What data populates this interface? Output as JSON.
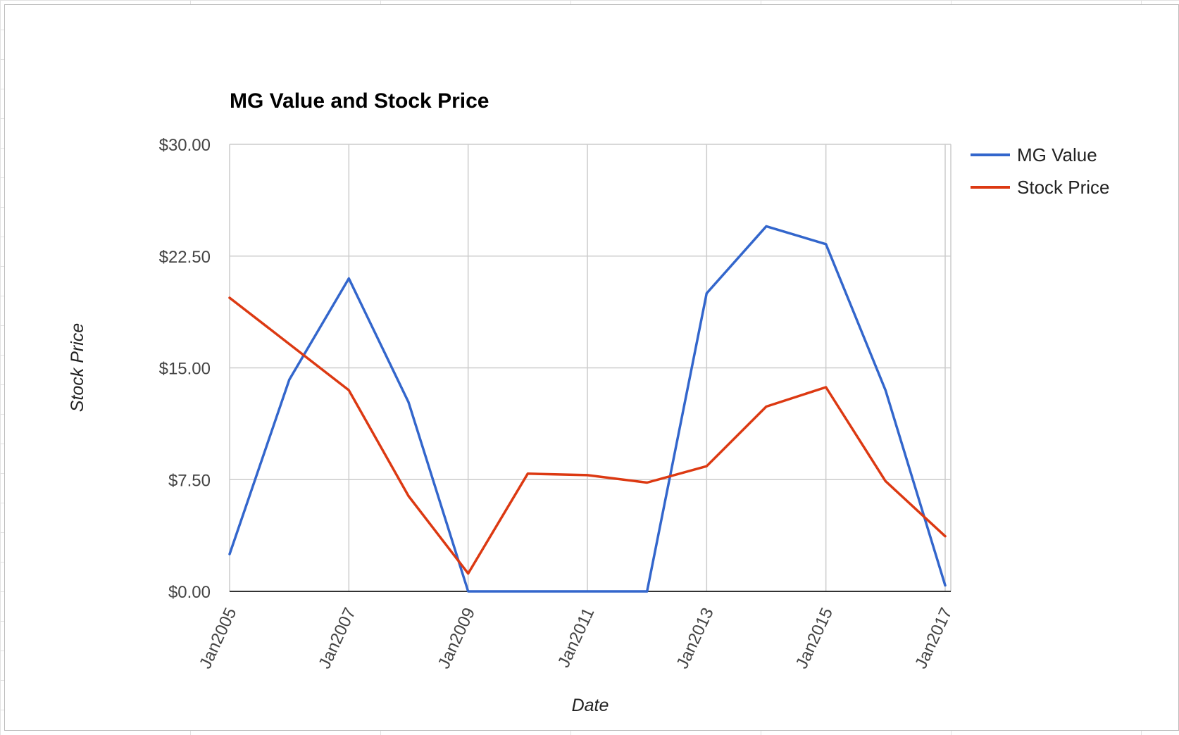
{
  "chart_data": {
    "type": "line",
    "title": "MG Value and Stock Price",
    "xlabel": "Date",
    "ylabel": "Stock Price",
    "x": [
      "2005-01",
      "2006-01",
      "2007-01",
      "2008-01",
      "2009-01",
      "2010-01",
      "2011-01",
      "2012-01",
      "2013-01",
      "2014-01",
      "2015-01",
      "2016-01",
      "2017-01"
    ],
    "x_tick_labels": [
      "Jan2005",
      "Jan2007",
      "Jan2009",
      "Jan2011",
      "Jan2013",
      "Jan2015",
      "Jan2017"
    ],
    "y_tick_labels": [
      "$0.00",
      "$7.50",
      "$15.00",
      "$22.50",
      "$30.00"
    ],
    "ylim": [
      0,
      30
    ],
    "grid": true,
    "legend": "right",
    "series": [
      {
        "name": "MG Value",
        "color": "#3366cc",
        "values": [
          2.5,
          14.2,
          21.0,
          12.7,
          0.0,
          0.0,
          0.0,
          0.0,
          20.0,
          24.5,
          23.3,
          13.5,
          0.4
        ]
      },
      {
        "name": "Stock Price",
        "color": "#dc3912",
        "values": [
          19.7,
          16.6,
          13.5,
          6.4,
          1.2,
          7.9,
          7.8,
          7.3,
          8.4,
          12.4,
          13.7,
          7.4,
          3.7
        ]
      }
    ]
  }
}
